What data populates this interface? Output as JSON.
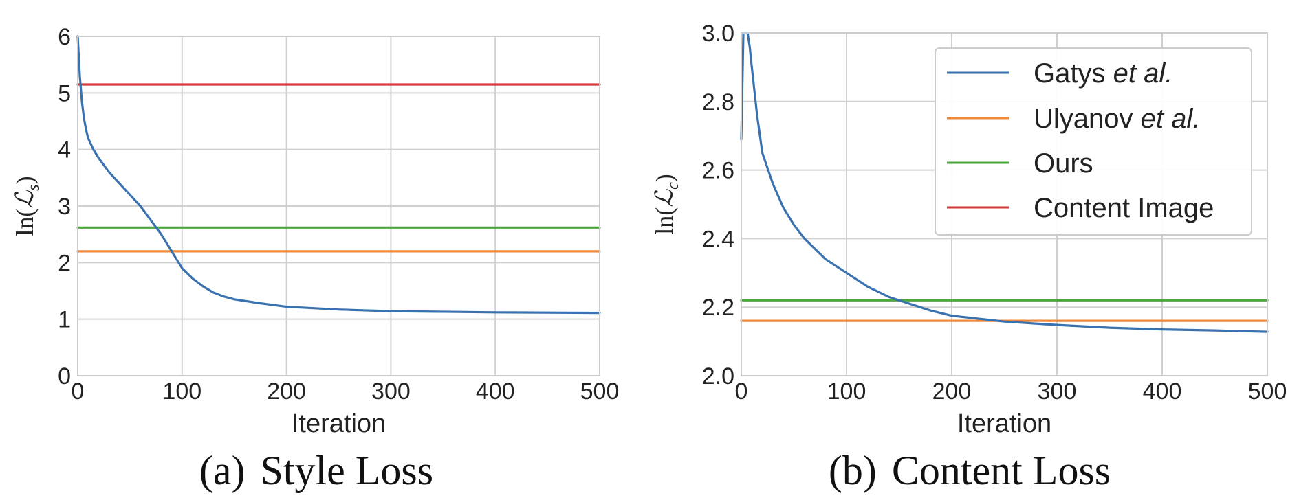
{
  "chart_data": [
    {
      "type": "line",
      "caption_tag": "(a)",
      "caption_text": "Style Loss",
      "xlabel": "Iteration",
      "ylabel_main": "ln(",
      "ylabel_symbol": "ℒ",
      "ylabel_sub": "s",
      "ylabel_close": ")",
      "xlim": [
        0,
        500
      ],
      "ylim": [
        0,
        6
      ],
      "xticks": [
        0,
        100,
        200,
        300,
        400,
        500
      ],
      "xtick_labels": [
        "0",
        "100",
        "200",
        "300",
        "400",
        "500"
      ],
      "yticks": [
        0,
        1,
        2,
        3,
        4,
        5,
        6
      ],
      "ytick_labels": [
        "0",
        "1",
        "2",
        "3",
        "4",
        "5",
        "6"
      ],
      "grid": true,
      "series": [
        {
          "name": "Gatys et al.",
          "color": "#3a72b0",
          "x": [
            0,
            2,
            4,
            6,
            8,
            10,
            15,
            20,
            30,
            40,
            50,
            60,
            70,
            80,
            90,
            100,
            110,
            120,
            130,
            140,
            150,
            175,
            200,
            250,
            300,
            350,
            400,
            450,
            500
          ],
          "y": [
            6.0,
            5.3,
            4.85,
            4.55,
            4.35,
            4.2,
            4.0,
            3.85,
            3.6,
            3.4,
            3.2,
            3.0,
            2.75,
            2.5,
            2.2,
            1.9,
            1.72,
            1.58,
            1.47,
            1.4,
            1.35,
            1.28,
            1.22,
            1.17,
            1.14,
            1.13,
            1.12,
            1.115,
            1.11
          ]
        },
        {
          "name": "Ulyanov et al.",
          "color": "#f0883a",
          "x": [
            0,
            500
          ],
          "y": [
            2.2,
            2.2
          ]
        },
        {
          "name": "Ours",
          "color": "#4aa83a",
          "x": [
            0,
            500
          ],
          "y": [
            2.62,
            2.62
          ]
        },
        {
          "name": "Content Image",
          "color": "#d43a3a",
          "x": [
            0,
            500
          ],
          "y": [
            5.15,
            5.15
          ]
        }
      ]
    },
    {
      "type": "line",
      "caption_tag": "(b)",
      "caption_text": "Content Loss",
      "xlabel": "Iteration",
      "ylabel_main": "ln(",
      "ylabel_symbol": "ℒ",
      "ylabel_sub": "c",
      "ylabel_close": ")",
      "xlim": [
        0,
        500
      ],
      "ylim": [
        2.0,
        3.0
      ],
      "xticks": [
        0,
        100,
        200,
        300,
        400,
        500
      ],
      "xtick_labels": [
        "0",
        "100",
        "200",
        "300",
        "400",
        "500"
      ],
      "yticks": [
        2.0,
        2.2,
        2.4,
        2.6,
        2.8,
        3.0
      ],
      "ytick_labels": [
        "2.0",
        "2.2",
        "2.4",
        "2.6",
        "2.8",
        "3.0"
      ],
      "grid": true,
      "legend_position": "upper-right",
      "series": [
        {
          "name": "Gatys et al.",
          "color": "#3a72b0",
          "x": [
            0,
            2,
            4,
            6,
            8,
            10,
            15,
            20,
            30,
            40,
            50,
            60,
            70,
            80,
            90,
            100,
            120,
            140,
            160,
            180,
            200,
            250,
            300,
            350,
            400,
            450,
            500
          ],
          "y": [
            2.69,
            3.0,
            3.0,
            3.0,
            2.96,
            2.9,
            2.76,
            2.65,
            2.56,
            2.49,
            2.44,
            2.4,
            2.37,
            2.34,
            2.32,
            2.3,
            2.26,
            2.23,
            2.21,
            2.19,
            2.175,
            2.158,
            2.148,
            2.14,
            2.135,
            2.132,
            2.128
          ]
        },
        {
          "name": "Ulyanov et al.",
          "color": "#f0883a",
          "x": [
            0,
            500
          ],
          "y": [
            2.16,
            2.16
          ]
        },
        {
          "name": "Ours",
          "color": "#4aa83a",
          "x": [
            0,
            500
          ],
          "y": [
            2.22,
            2.22
          ]
        }
      ]
    }
  ],
  "legend": {
    "entries": [
      {
        "name_plain": "Gatys ",
        "name_italic": "et al.",
        "color": "#3a72b0"
      },
      {
        "name_plain": "Ulyanov ",
        "name_italic": "et al.",
        "color": "#f0883a"
      },
      {
        "name_plain": "Ours",
        "name_italic": "",
        "color": "#4aa83a"
      },
      {
        "name_plain": "Content Image",
        "name_italic": "",
        "color": "#d43a3a"
      }
    ]
  }
}
